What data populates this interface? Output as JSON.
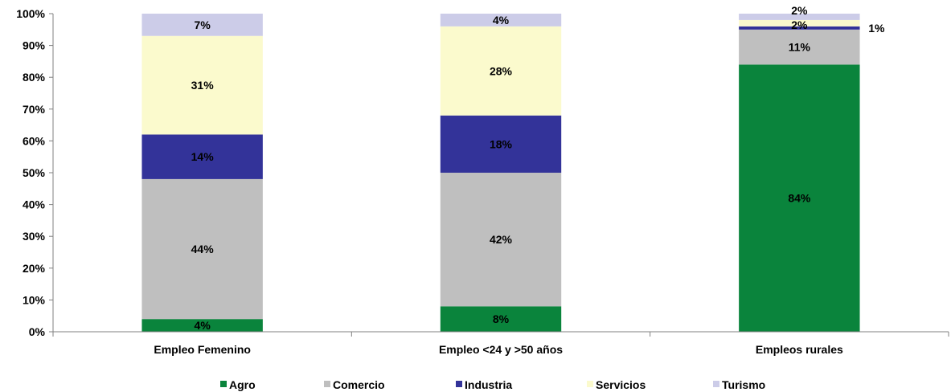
{
  "chart_data": {
    "type": "bar",
    "stacked": true,
    "percent": true,
    "categories": [
      "Empleo Femenino",
      "Empleo <24 y >50 años",
      "Empleos rurales"
    ],
    "ylim": [
      0,
      100
    ],
    "yticks": [
      "0%",
      "10%",
      "20%",
      "30%",
      "40%",
      "50%",
      "60%",
      "70%",
      "80%",
      "90%",
      "100%"
    ],
    "series": [
      {
        "name": "Agro",
        "color": "#0a843c",
        "values": [
          4,
          8,
          84
        ],
        "labels": [
          "4%",
          "8%",
          "84%"
        ],
        "label_color": "#000000"
      },
      {
        "name": "Comercio",
        "color": "#bfbfbf",
        "values": [
          44,
          42,
          11
        ],
        "labels": [
          "44%",
          "42%",
          "11%"
        ],
        "label_color": "#000000"
      },
      {
        "name": "Industria",
        "color": "#333399",
        "values": [
          14,
          18,
          1
        ],
        "labels": [
          "14%",
          "18%",
          "1%"
        ],
        "label_color": "#000000"
      },
      {
        "name": "Servicios",
        "color": "#fbfacd",
        "values": [
          31,
          28,
          2
        ],
        "labels": [
          "31%",
          "28%",
          "2%"
        ],
        "label_color": "#000000"
      },
      {
        "name": "Turismo",
        "color": "#cccce8",
        "values": [
          7,
          4,
          2
        ],
        "labels": [
          "7%",
          "4%",
          "2%"
        ],
        "label_color": "#000000"
      }
    ],
    "legend": "bottom",
    "grid": false
  }
}
